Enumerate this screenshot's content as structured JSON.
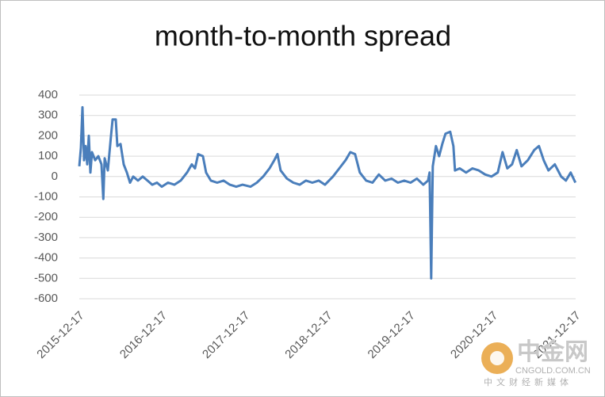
{
  "chart_data": {
    "type": "line",
    "title": "month-to-month spread",
    "xlim": [
      "2015-12-17",
      "2021-12-17"
    ],
    "xticks": [
      "2015-12-17",
      "2016-12-17",
      "2017-12-17",
      "2018-12-17",
      "2019-12-17",
      "2020-12-17",
      "2021-12-17"
    ],
    "ylim": [
      -600,
      400
    ],
    "yticks": [
      400,
      300,
      200,
      100,
      0,
      -100,
      -200,
      -300,
      -400,
      -500,
      -600
    ],
    "grid": true,
    "x": [
      "2015-12-17",
      "2015-12-24",
      "2015-12-31",
      "2016-01-07",
      "2016-01-14",
      "2016-01-21",
      "2016-01-28",
      "2016-02-04",
      "2016-02-11",
      "2016-02-25",
      "2016-03-10",
      "2016-03-24",
      "2016-04-01",
      "2016-04-07",
      "2016-04-21",
      "2016-05-05",
      "2016-05-12",
      "2016-05-26",
      "2016-06-02",
      "2016-06-16",
      "2016-06-30",
      "2016-07-14",
      "2016-07-28",
      "2016-08-11",
      "2016-09-01",
      "2016-09-22",
      "2016-10-13",
      "2016-11-03",
      "2016-11-24",
      "2016-12-15",
      "2017-01-12",
      "2017-02-09",
      "2017-03-09",
      "2017-04-06",
      "2017-04-27",
      "2017-05-11",
      "2017-05-25",
      "2017-06-15",
      "2017-06-29",
      "2017-07-20",
      "2017-08-17",
      "2017-09-14",
      "2017-10-12",
      "2017-11-09",
      "2017-12-07",
      "2018-01-11",
      "2018-02-08",
      "2018-03-08",
      "2018-04-05",
      "2018-04-26",
      "2018-05-10",
      "2018-05-24",
      "2018-06-21",
      "2018-07-19",
      "2018-08-16",
      "2018-09-13",
      "2018-10-11",
      "2018-11-08",
      "2018-12-06",
      "2019-01-10",
      "2019-02-07",
      "2019-03-07",
      "2019-03-28",
      "2019-04-18",
      "2019-05-09",
      "2019-06-06",
      "2019-07-04",
      "2019-08-01",
      "2019-08-29",
      "2019-09-26",
      "2019-10-24",
      "2019-11-21",
      "2019-12-19",
      "2020-01-16",
      "2020-02-13",
      "2020-03-05",
      "2020-03-12",
      "2020-03-19",
      "2020-03-26",
      "2020-04-09",
      "2020-04-23",
      "2020-05-07",
      "2020-05-21",
      "2020-06-11",
      "2020-06-25",
      "2020-07-02",
      "2020-07-23",
      "2020-08-20",
      "2020-09-17",
      "2020-10-15",
      "2020-11-12",
      "2020-12-10",
      "2021-01-07",
      "2021-01-28",
      "2021-02-18",
      "2021-03-11",
      "2021-04-01",
      "2021-04-22",
      "2021-05-20",
      "2021-06-17",
      "2021-07-08",
      "2021-07-29",
      "2021-08-19",
      "2021-09-16",
      "2021-10-14",
      "2021-11-04",
      "2021-11-25",
      "2021-12-16"
    ],
    "series": [
      {
        "color": "#4a7ebb",
        "values": [
          50,
          140,
          340,
          80,
          150,
          60,
          200,
          20,
          120,
          80,
          100,
          60,
          -110,
          90,
          30,
          200,
          280,
          280,
          150,
          160,
          60,
          20,
          -30,
          0,
          -20,
          0,
          -20,
          -40,
          -30,
          -50,
          -30,
          -40,
          -20,
          20,
          60,
          40,
          110,
          100,
          20,
          -20,
          -30,
          -20,
          -40,
          -50,
          -40,
          -50,
          -30,
          0,
          40,
          80,
          110,
          30,
          -10,
          -30,
          -40,
          -20,
          -30,
          -20,
          -40,
          0,
          40,
          80,
          120,
          110,
          20,
          -20,
          -30,
          10,
          -20,
          -10,
          -30,
          -20,
          -30,
          -10,
          -40,
          -20,
          20,
          -500,
          50,
          150,
          100,
          160,
          210,
          220,
          150,
          30,
          40,
          20,
          40,
          30,
          10,
          0,
          20,
          120,
          40,
          60,
          130,
          50,
          80,
          130,
          150,
          80,
          30,
          60,
          0,
          -20,
          20,
          -30
        ]
      }
    ]
  },
  "watermark": {
    "name": "中金网",
    "url": "CNGOLD.COM.CN",
    "tagline": "中文财经新媒体"
  }
}
